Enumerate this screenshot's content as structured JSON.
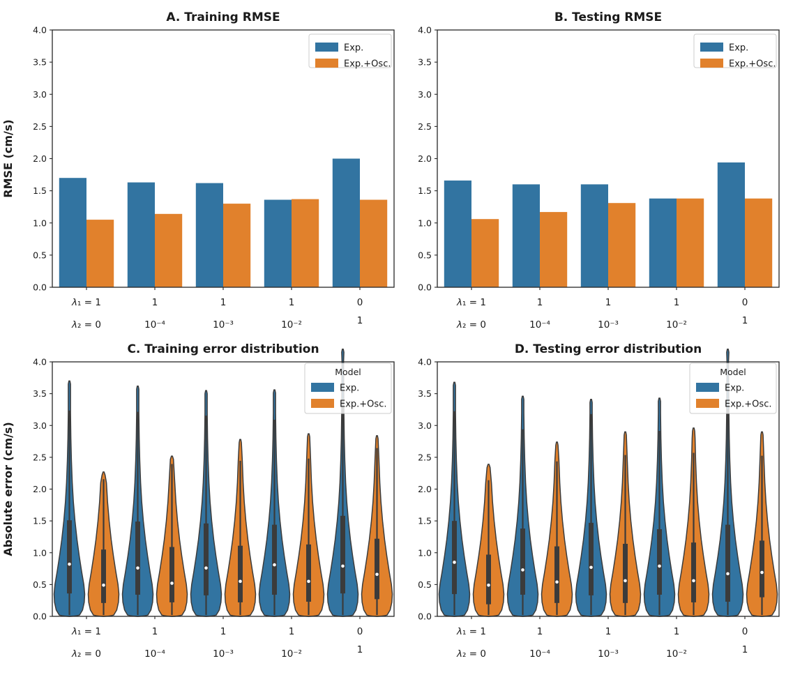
{
  "colors": {
    "exp_blue": "#3274a1",
    "osc_orange": "#e1812c",
    "violin_inner": "#3b3b3b",
    "median_dot": "#ffffff",
    "axis_line": "#262626",
    "text": "#1a1a1a",
    "legend_border": "#cccccc",
    "background": "#ffffff"
  },
  "chart_data": [
    {
      "id": "panel-a",
      "type": "bar",
      "title": "A. Training RMSE",
      "ylabel": "RMSE (cm/s)",
      "ylim": [
        0.0,
        4.0
      ],
      "yticks": [
        "0.0",
        "0.5",
        "1.0",
        "1.5",
        "2.0",
        "2.5",
        "3.0",
        "3.5",
        "4.0"
      ],
      "categories_row1": [
        "λ₁ = 1",
        "1",
        "1",
        "1",
        "0"
      ],
      "categories_row2": [
        "λ₂ = 0",
        "10⁻⁴",
        "10⁻³",
        "10⁻²",
        "1"
      ],
      "legend": {
        "title": "",
        "entries": [
          "Exp.",
          "Exp.+Osc."
        ]
      },
      "grid": false,
      "legend_position": "upper right",
      "series": [
        {
          "name": "Exp.",
          "color": "#3274a1",
          "values": [
            1.7,
            1.63,
            1.62,
            1.36,
            2.0
          ]
        },
        {
          "name": "Exp.+Osc.",
          "color": "#e1812c",
          "values": [
            1.05,
            1.14,
            1.3,
            1.37,
            1.36
          ]
        }
      ]
    },
    {
      "id": "panel-b",
      "type": "bar",
      "title": "B. Testing RMSE",
      "ylabel": "",
      "ylim": [
        0.0,
        4.0
      ],
      "yticks": [
        "0.0",
        "0.5",
        "1.0",
        "1.5",
        "2.0",
        "2.5",
        "3.0",
        "3.5",
        "4.0"
      ],
      "categories_row1": [
        "λ₁ = 1",
        "1",
        "1",
        "1",
        "0"
      ],
      "categories_row2": [
        "λ₂ = 0",
        "10⁻⁴",
        "10⁻³",
        "10⁻²",
        "1"
      ],
      "legend": {
        "title": "",
        "entries": [
          "Exp.",
          "Exp.+Osc."
        ]
      },
      "grid": false,
      "legend_position": "upper right",
      "series": [
        {
          "name": "Exp.",
          "color": "#3274a1",
          "values": [
            1.66,
            1.6,
            1.6,
            1.38,
            1.94
          ]
        },
        {
          "name": "Exp.+Osc.",
          "color": "#e1812c",
          "values": [
            1.06,
            1.17,
            1.31,
            1.38,
            1.38
          ]
        }
      ]
    },
    {
      "id": "panel-c",
      "type": "violin",
      "title": "C. Training error distribution",
      "ylabel": "Absolute error (cm/s)",
      "ylim": [
        0.0,
        4.0
      ],
      "yticks": [
        "0.0",
        "0.5",
        "1.0",
        "1.5",
        "2.0",
        "2.5",
        "3.0",
        "3.5",
        "4.0"
      ],
      "categories_row1": [
        "λ₁ = 1",
        "1",
        "1",
        "1",
        "0"
      ],
      "categories_row2": [
        "λ₂ = 0",
        "10⁻⁴",
        "10⁻³",
        "10⁻²",
        "1"
      ],
      "legend": {
        "title": "Model",
        "entries": [
          "Exp.",
          "Exp.+Osc."
        ]
      },
      "grid": false,
      "legend_position": "upper right",
      "series": [
        {
          "name": "Exp.",
          "color": "#3274a1",
          "violins": [
            {
              "max": 3.7,
              "q3": 1.51,
              "median": 0.82,
              "q1": 0.36,
              "min": 0.02
            },
            {
              "max": 3.62,
              "q3": 1.49,
              "median": 0.76,
              "q1": 0.34,
              "min": 0.02
            },
            {
              "max": 3.55,
              "q3": 1.46,
              "median": 0.76,
              "q1": 0.33,
              "min": 0.02
            },
            {
              "max": 3.56,
              "q3": 1.44,
              "median": 0.81,
              "q1": 0.34,
              "min": 0.02
            },
            {
              "max": 4.2,
              "q3": 1.58,
              "median": 0.79,
              "q1": 0.36,
              "min": 0.02,
              "clipped_above_axis": true
            }
          ]
        },
        {
          "name": "Exp.+Osc.",
          "color": "#e1812c",
          "violins": [
            {
              "max": 2.27,
              "q3": 1.05,
              "median": 0.49,
              "q1": 0.21,
              "min": 0.02
            },
            {
              "max": 2.52,
              "q3": 1.09,
              "median": 0.52,
              "q1": 0.22,
              "min": 0.02
            },
            {
              "max": 2.78,
              "q3": 1.11,
              "median": 0.55,
              "q1": 0.22,
              "min": 0.02
            },
            {
              "max": 2.87,
              "q3": 1.13,
              "median": 0.55,
              "q1": 0.23,
              "min": 0.02
            },
            {
              "max": 2.84,
              "q3": 1.22,
              "median": 0.66,
              "q1": 0.27,
              "min": 0.02
            }
          ]
        }
      ]
    },
    {
      "id": "panel-d",
      "type": "violin",
      "title": "D. Testing error distribution",
      "ylabel": "",
      "ylim": [
        0.0,
        4.0
      ],
      "yticks": [
        "0.0",
        "0.5",
        "1.0",
        "1.5",
        "2.0",
        "2.5",
        "3.0",
        "3.5",
        "4.0"
      ],
      "categories_row1": [
        "λ₁ = 1",
        "1",
        "1",
        "1",
        "0"
      ],
      "categories_row2": [
        "λ₂ = 0",
        "10⁻⁴",
        "10⁻³",
        "10⁻²",
        "1"
      ],
      "legend": {
        "title": "Model",
        "entries": [
          "Exp.",
          "Exp.+Osc."
        ]
      },
      "grid": false,
      "legend_position": "upper right",
      "series": [
        {
          "name": "Exp.",
          "color": "#3274a1",
          "violins": [
            {
              "max": 3.68,
              "q3": 1.5,
              "median": 0.85,
              "q1": 0.35,
              "min": 0.02
            },
            {
              "max": 3.46,
              "q3": 1.38,
              "median": 0.73,
              "q1": 0.34,
              "min": 0.02
            },
            {
              "max": 3.41,
              "q3": 1.47,
              "median": 0.77,
              "q1": 0.33,
              "min": 0.02
            },
            {
              "max": 3.43,
              "q3": 1.37,
              "median": 0.79,
              "q1": 0.34,
              "min": 0.02
            },
            {
              "max": 4.2,
              "q3": 1.44,
              "median": 0.67,
              "q1": 0.23,
              "min": 0.02,
              "clipped_above_axis": true
            }
          ]
        },
        {
          "name": "Exp.+Osc.",
          "color": "#e1812c",
          "violins": [
            {
              "max": 2.39,
              "q3": 0.97,
              "median": 0.49,
              "q1": 0.19,
              "min": 0.02
            },
            {
              "max": 2.74,
              "q3": 1.1,
              "median": 0.54,
              "q1": 0.21,
              "min": 0.02
            },
            {
              "max": 2.9,
              "q3": 1.14,
              "median": 0.56,
              "q1": 0.21,
              "min": 0.02
            },
            {
              "max": 2.96,
              "q3": 1.16,
              "median": 0.56,
              "q1": 0.22,
              "min": 0.02
            },
            {
              "max": 2.9,
              "q3": 1.19,
              "median": 0.69,
              "q1": 0.3,
              "min": 0.02
            }
          ]
        }
      ]
    }
  ]
}
